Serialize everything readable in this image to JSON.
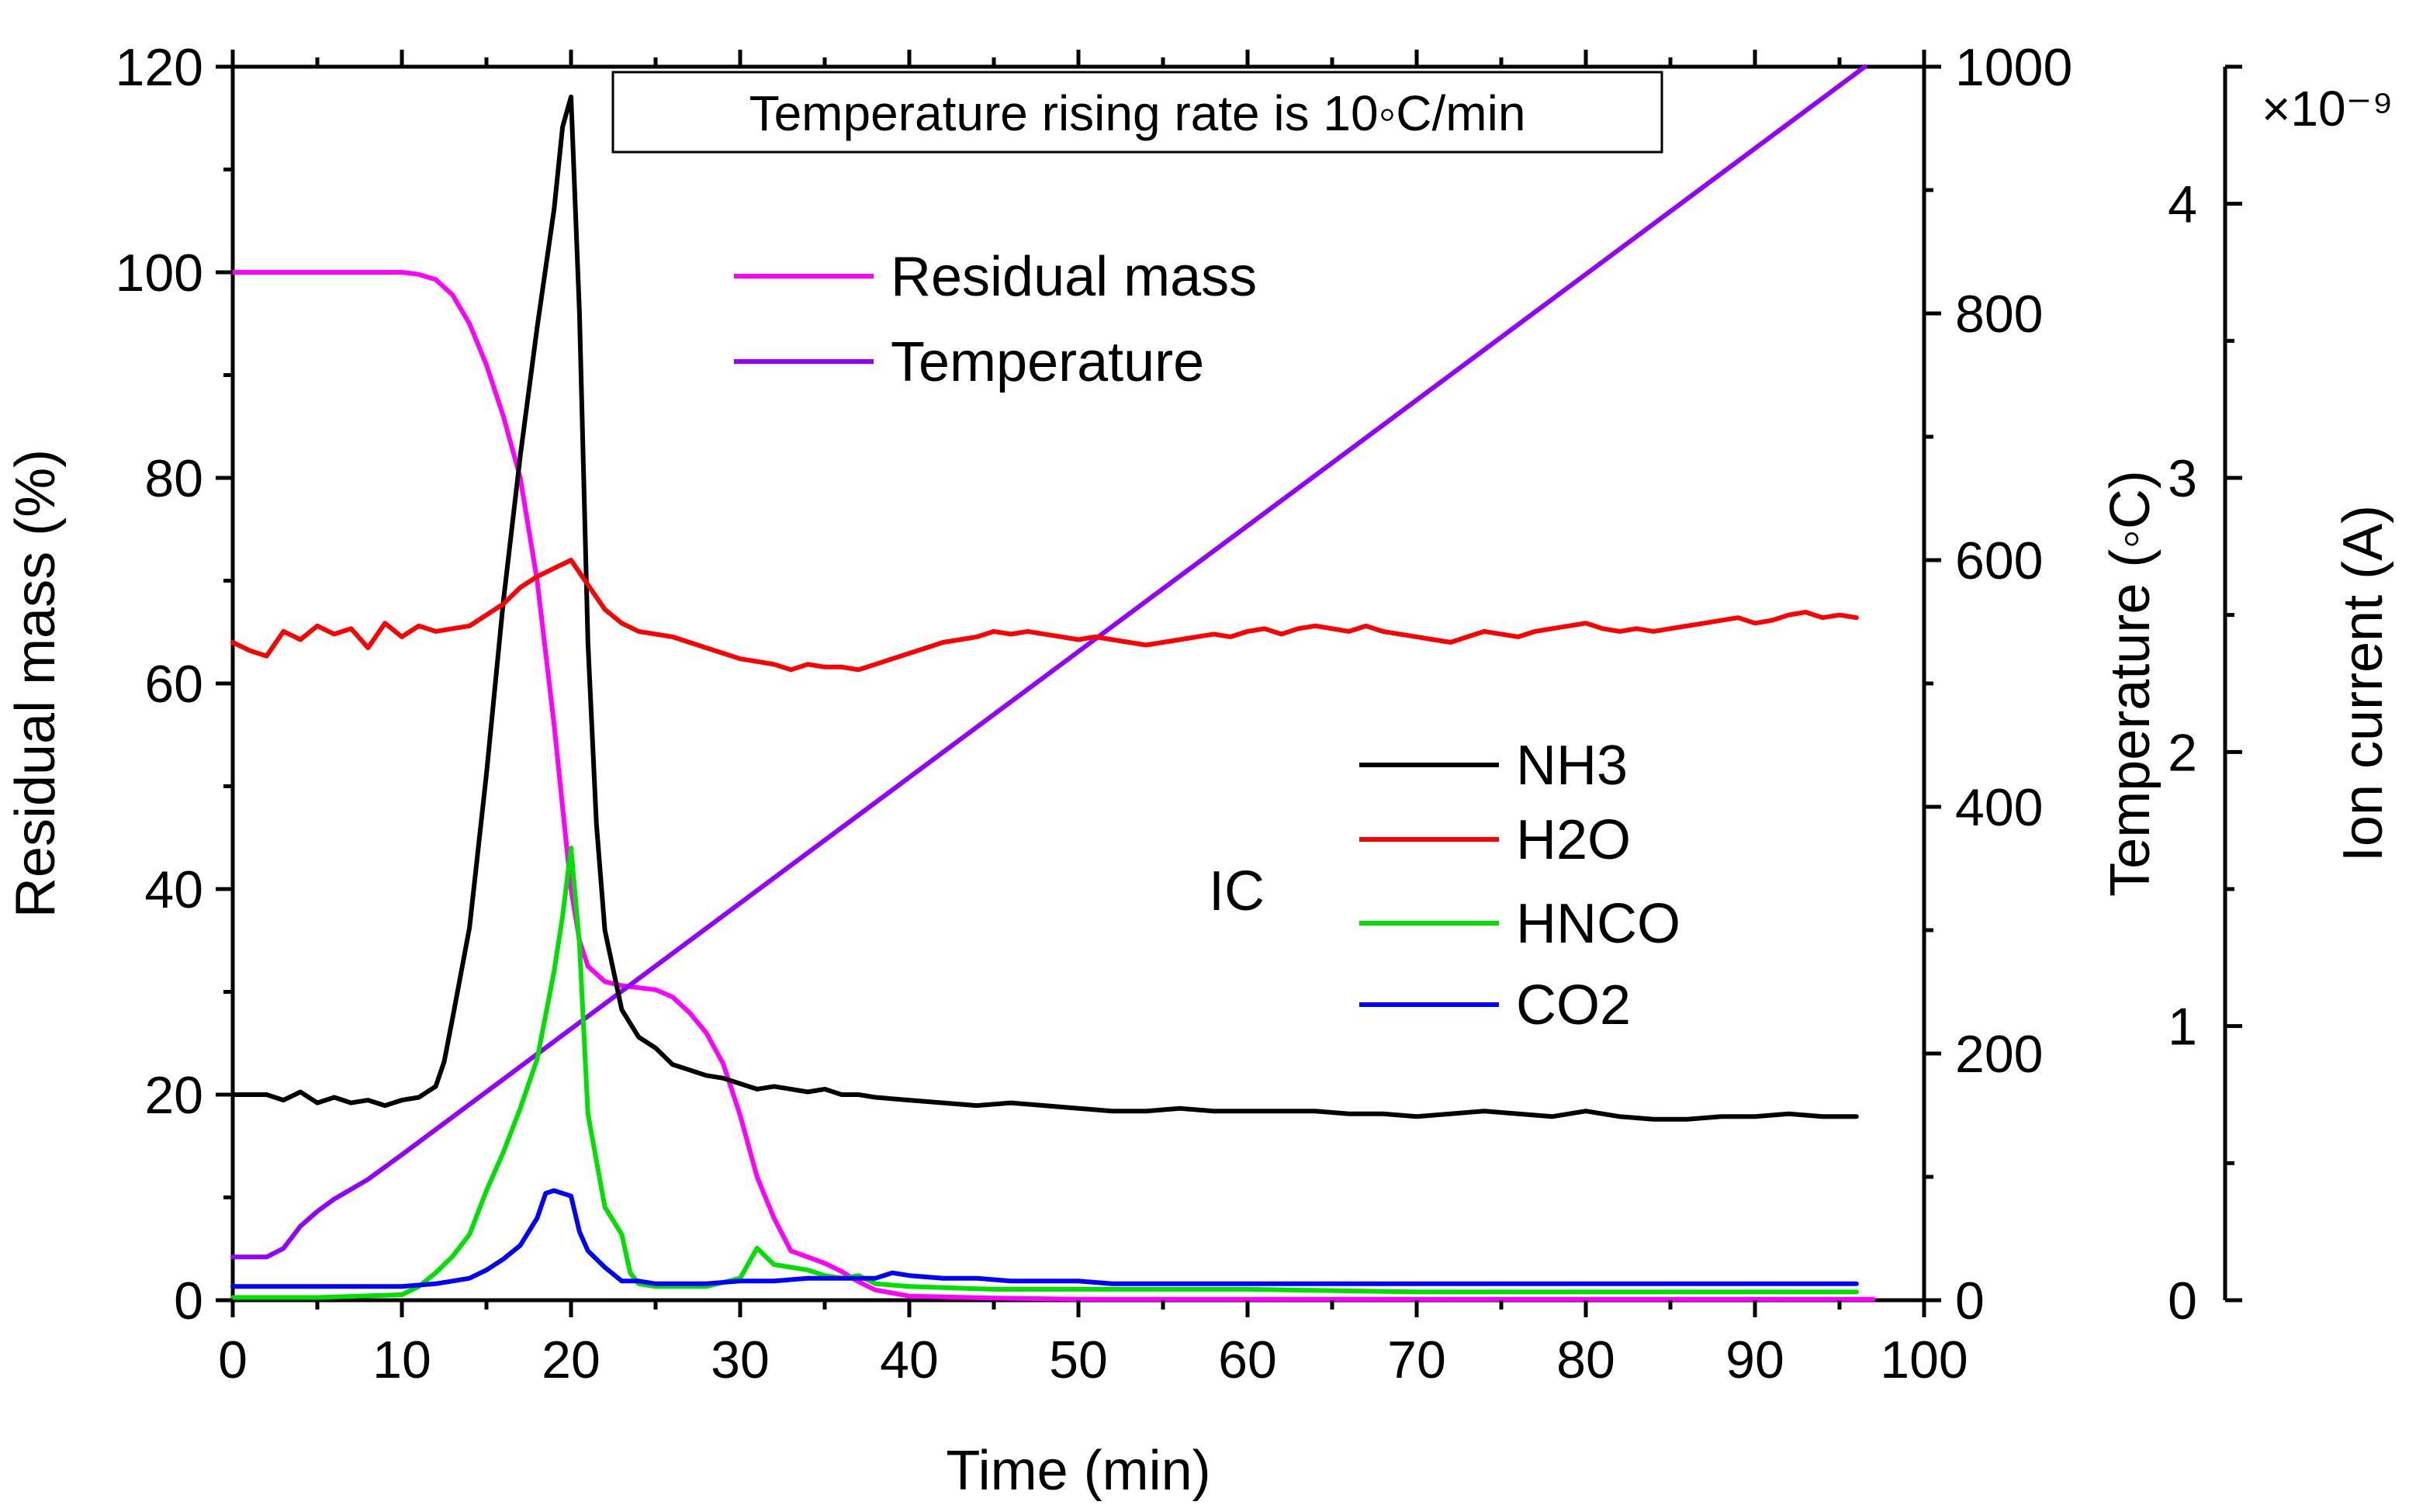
{
  "chart_data": {
    "type": "line",
    "annotation": "Temperature rising rate is 10◦C/min",
    "xlabel": "Time (min)",
    "x_ticks": [
      "0",
      "10",
      "20",
      "30",
      "40",
      "50",
      "60",
      "70",
      "80",
      "90",
      "100"
    ],
    "xlim": [
      0,
      100
    ],
    "y_left": {
      "label": "Residual mass (%)",
      "lim": [
        0,
        120
      ],
      "ticks": [
        "0",
        "20",
        "40",
        "60",
        "80",
        "100",
        "120"
      ]
    },
    "y_temp": {
      "label": "Temperature (◦C)",
      "lim": [
        0,
        1000
      ],
      "ticks": [
        "0",
        "200",
        "400",
        "600",
        "800",
        "1000"
      ]
    },
    "y_ion": {
      "label": "Ion current (A)",
      "lim": [
        0,
        4.5
      ],
      "ticks": [
        "0",
        "1",
        "2",
        "3",
        "4"
      ],
      "multiplier": "×10⁻⁹"
    },
    "legend_main": [
      "Residual mass",
      "Temperature"
    ],
    "legend_ic_title": "IC",
    "legend_ic": [
      "NH3",
      "H2O",
      "HNCO",
      "CO2"
    ],
    "series": [
      {
        "name": "Residual mass",
        "axis": "left",
        "color": "#ff00ff",
        "x": [
          0,
          2,
          4,
          6,
          8,
          10,
          11,
          12,
          13,
          14,
          15,
          16,
          17,
          18,
          19,
          19.5,
          20,
          20.5,
          21,
          22,
          23,
          24,
          25,
          26,
          27,
          28,
          29,
          30,
          31,
          32,
          33,
          34,
          35,
          36,
          37,
          38,
          40,
          45,
          50,
          60,
          70,
          80,
          90,
          96,
          97
        ],
        "y": [
          100,
          100,
          100,
          100,
          100,
          100,
          99.8,
          99.3,
          97.8,
          95,
          91,
          86,
          80,
          70,
          56,
          48,
          40,
          35,
          32.5,
          31,
          30.6,
          30.4,
          30.2,
          29.5,
          28,
          26,
          23,
          18,
          12,
          8,
          4.8,
          4.2,
          3.6,
          2.8,
          1.8,
          1,
          0.4,
          0.2,
          0.1,
          0.1,
          0.1,
          0.1,
          0.1,
          0.1,
          0.1
        ]
      },
      {
        "name": "Temperature",
        "axis": "temp",
        "color": "#9400ff",
        "x": [
          0,
          2,
          3,
          4,
          5,
          6,
          8,
          10,
          96.5
        ],
        "y": [
          35,
          35,
          42,
          60,
          72,
          82,
          98,
          118,
          1000
        ]
      },
      {
        "name": "NH3",
        "axis": "ion",
        "color": "#000000",
        "x": [
          0,
          2,
          3,
          4,
          5,
          6,
          7,
          8,
          9,
          10,
          11,
          12,
          12.5,
          13,
          14,
          15,
          16,
          17,
          18,
          19,
          19.5,
          20,
          20.5,
          21,
          21.5,
          22,
          23,
          24,
          25,
          26,
          27,
          28,
          29,
          30,
          31,
          32,
          33,
          34,
          35,
          36,
          37,
          38,
          40,
          42,
          44,
          46,
          48,
          50,
          52,
          54,
          56,
          58,
          60,
          62,
          64,
          66,
          68,
          70,
          72,
          74,
          76,
          78,
          80,
          82,
          84,
          86,
          88,
          90,
          92,
          94,
          96
        ],
        "y": [
          0.75,
          0.75,
          0.73,
          0.76,
          0.72,
          0.74,
          0.72,
          0.73,
          0.71,
          0.73,
          0.74,
          0.78,
          0.87,
          1.03,
          1.36,
          1.92,
          2.55,
          3.08,
          3.55,
          3.98,
          4.28,
          4.39,
          3.6,
          2.4,
          1.74,
          1.35,
          1.06,
          0.96,
          0.92,
          0.86,
          0.84,
          0.82,
          0.81,
          0.79,
          0.77,
          0.78,
          0.77,
          0.76,
          0.77,
          0.75,
          0.75,
          0.74,
          0.73,
          0.72,
          0.71,
          0.72,
          0.71,
          0.7,
          0.69,
          0.69,
          0.7,
          0.69,
          0.69,
          0.69,
          0.69,
          0.68,
          0.68,
          0.67,
          0.68,
          0.69,
          0.68,
          0.67,
          0.69,
          0.67,
          0.66,
          0.66,
          0.67,
          0.67,
          0.68,
          0.67,
          0.67
        ]
      },
      {
        "name": "H2O",
        "axis": "ion",
        "color": "#ff0000",
        "x": [
          0,
          1,
          2,
          3,
          4,
          5,
          6,
          7,
          8,
          9,
          10,
          11,
          12,
          13,
          14,
          15,
          16,
          17,
          18,
          19,
          20,
          21,
          22,
          23,
          24,
          25,
          26,
          27,
          28,
          29,
          30,
          31,
          32,
          33,
          34,
          35,
          36,
          37,
          38,
          39,
          40,
          41,
          42,
          43,
          44,
          45,
          46,
          47,
          48,
          49,
          50,
          51,
          52,
          53,
          54,
          55,
          56,
          57,
          58,
          59,
          60,
          61,
          62,
          63,
          64,
          65,
          66,
          67,
          68,
          69,
          70,
          71,
          72,
          73,
          74,
          75,
          76,
          77,
          78,
          79,
          80,
          81,
          82,
          83,
          84,
          85,
          86,
          87,
          88,
          89,
          90,
          91,
          92,
          93,
          94,
          95,
          96
        ],
        "y": [
          2.4,
          2.37,
          2.35,
          2.44,
          2.41,
          2.46,
          2.43,
          2.45,
          2.38,
          2.47,
          2.42,
          2.46,
          2.44,
          2.45,
          2.46,
          2.5,
          2.54,
          2.6,
          2.64,
          2.67,
          2.7,
          2.61,
          2.52,
          2.47,
          2.44,
          2.43,
          2.42,
          2.4,
          2.38,
          2.36,
          2.34,
          2.33,
          2.32,
          2.3,
          2.32,
          2.31,
          2.31,
          2.3,
          2.32,
          2.34,
          2.36,
          2.38,
          2.4,
          2.41,
          2.42,
          2.44,
          2.43,
          2.44,
          2.43,
          2.42,
          2.41,
          2.42,
          2.41,
          2.4,
          2.39,
          2.4,
          2.41,
          2.42,
          2.43,
          2.42,
          2.44,
          2.45,
          2.43,
          2.45,
          2.46,
          2.45,
          2.44,
          2.46,
          2.44,
          2.43,
          2.42,
          2.41,
          2.4,
          2.42,
          2.44,
          2.43,
          2.42,
          2.44,
          2.45,
          2.46,
          2.47,
          2.45,
          2.44,
          2.45,
          2.44,
          2.45,
          2.46,
          2.47,
          2.48,
          2.49,
          2.47,
          2.48,
          2.5,
          2.51,
          2.49,
          2.5,
          2.49
        ]
      },
      {
        "name": "HNCO",
        "axis": "ion",
        "color": "#00e000",
        "x": [
          0,
          5,
          10,
          11,
          12,
          13,
          14,
          15,
          16,
          17,
          18,
          19,
          19.5,
          20,
          20.5,
          21,
          22,
          23,
          23.5,
          24,
          25,
          26,
          28,
          30,
          31,
          32,
          33,
          34,
          35,
          36,
          37,
          38,
          40,
          45,
          50,
          60,
          70,
          80,
          90,
          96
        ],
        "y": [
          0.01,
          0.01,
          0.02,
          0.05,
          0.1,
          0.16,
          0.24,
          0.4,
          0.54,
          0.7,
          0.88,
          1.2,
          1.4,
          1.65,
          1.3,
          0.68,
          0.34,
          0.24,
          0.1,
          0.06,
          0.05,
          0.05,
          0.05,
          0.08,
          0.19,
          0.13,
          0.12,
          0.11,
          0.09,
          0.08,
          0.09,
          0.06,
          0.05,
          0.04,
          0.04,
          0.04,
          0.03,
          0.03,
          0.03,
          0.03
        ]
      },
      {
        "name": "CO2",
        "axis": "ion",
        "color": "#0000ff",
        "x": [
          0,
          2,
          4,
          6,
          8,
          10,
          12,
          13,
          14,
          15,
          16,
          17,
          18,
          18.5,
          19,
          20,
          20.5,
          21,
          22,
          23,
          24,
          25,
          26,
          28,
          30,
          32,
          34,
          36,
          38,
          39,
          40,
          42,
          44,
          46,
          48,
          50,
          52,
          55,
          60,
          65,
          70,
          75,
          80,
          85,
          90,
          96
        ],
        "y": [
          0.05,
          0.05,
          0.05,
          0.05,
          0.05,
          0.05,
          0.06,
          0.07,
          0.08,
          0.11,
          0.15,
          0.2,
          0.3,
          0.39,
          0.4,
          0.38,
          0.25,
          0.18,
          0.12,
          0.07,
          0.07,
          0.06,
          0.06,
          0.06,
          0.07,
          0.07,
          0.08,
          0.08,
          0.08,
          0.1,
          0.09,
          0.08,
          0.08,
          0.07,
          0.07,
          0.07,
          0.06,
          0.06,
          0.06,
          0.06,
          0.06,
          0.06,
          0.06,
          0.06,
          0.06,
          0.06
        ]
      }
    ]
  }
}
